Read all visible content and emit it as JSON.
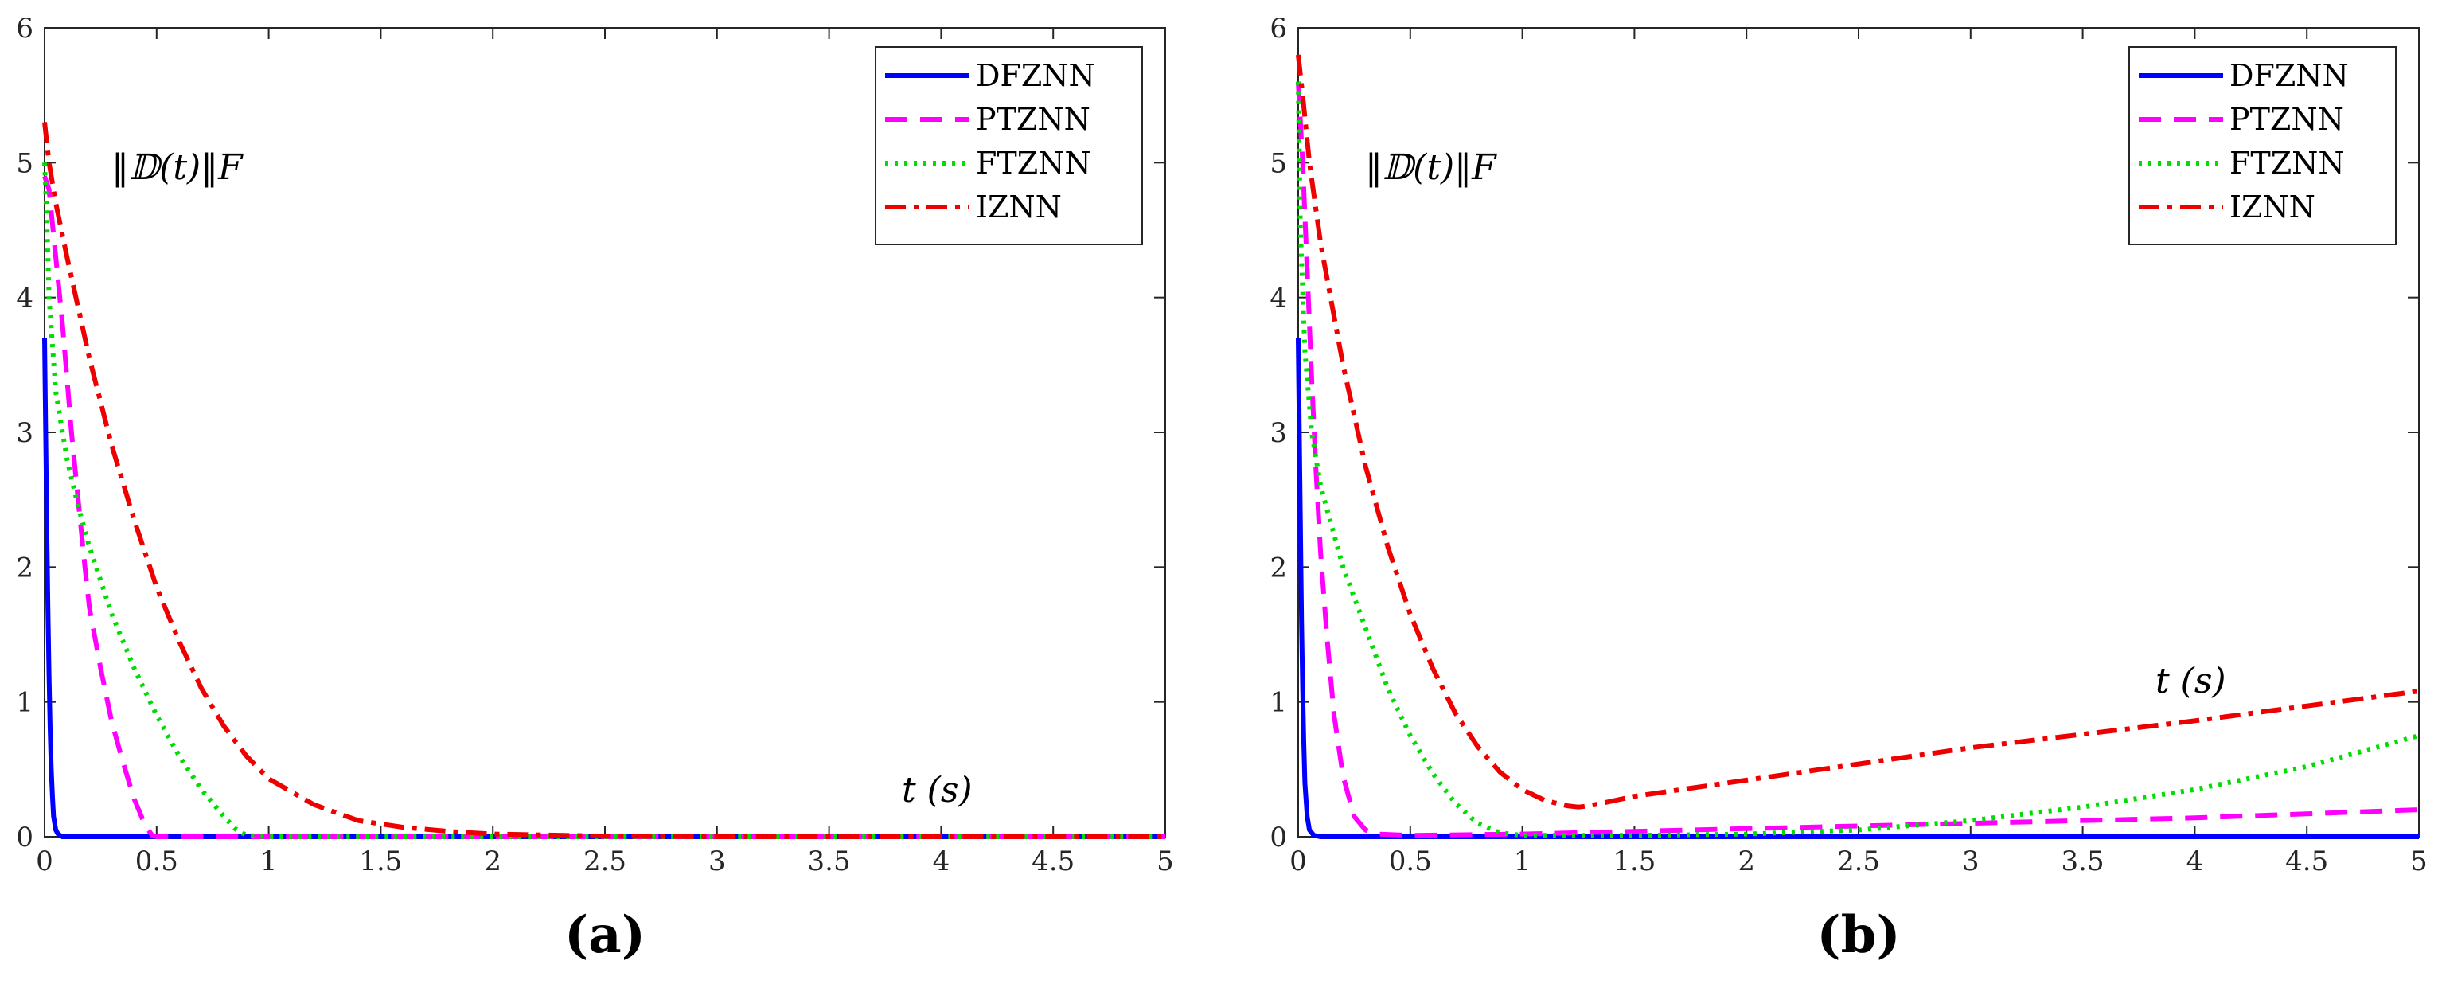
{
  "figure": {
    "panel_captions": [
      "(a)",
      "(b)"
    ]
  },
  "chart_data": [
    {
      "type": "line",
      "panel": "(a)",
      "xlim": [
        0,
        5
      ],
      "ylim": [
        0,
        6
      ],
      "xticks": [
        "0",
        "0.5",
        "1",
        "1.5",
        "2",
        "2.5",
        "3",
        "3.5",
        "4",
        "4.5",
        "5"
      ],
      "yticks": [
        "0",
        "1",
        "2",
        "3",
        "4",
        "5",
        "6"
      ],
      "y_annotation": "‖𝔻(t)‖F",
      "x_annotation": "t (s)",
      "legend_position": "top-right",
      "series": [
        {
          "name": "DFZNN",
          "color": "#0000ff",
          "style": "solid",
          "x": [
            0,
            0.005,
            0.01,
            0.015,
            0.02,
            0.025,
            0.03,
            0.035,
            0.04,
            0.05,
            0.06,
            0.07,
            0.08,
            0.1,
            5
          ],
          "y": [
            3.7,
            3.0,
            2.3,
            1.7,
            1.2,
            0.8,
            0.5,
            0.3,
            0.15,
            0.05,
            0.02,
            0.01,
            0.0,
            0.0,
            0.0
          ]
        },
        {
          "name": "PTZNN",
          "color": "#ff00ff",
          "style": "dashed",
          "x": [
            0,
            0.02,
            0.05,
            0.08,
            0.1,
            0.12,
            0.15,
            0.18,
            0.2,
            0.25,
            0.3,
            0.35,
            0.4,
            0.45,
            0.48,
            0.5,
            5
          ],
          "y": [
            4.9,
            4.8,
            4.3,
            3.8,
            3.4,
            3.0,
            2.5,
            2.0,
            1.7,
            1.25,
            0.85,
            0.55,
            0.28,
            0.08,
            0.01,
            0.0,
            0.0
          ]
        },
        {
          "name": "FTZNN",
          "color": "#00dd00",
          "style": "dotted",
          "x": [
            0,
            0.01,
            0.02,
            0.05,
            0.1,
            0.15,
            0.2,
            0.3,
            0.4,
            0.5,
            0.6,
            0.7,
            0.8,
            0.85,
            0.9,
            1.0,
            5
          ],
          "y": [
            5.0,
            4.6,
            4.0,
            3.3,
            2.8,
            2.45,
            2.15,
            1.65,
            1.25,
            0.9,
            0.6,
            0.35,
            0.15,
            0.06,
            0.01,
            0.0,
            0.0
          ]
        },
        {
          "name": "IZNN",
          "color": "#ee0000",
          "style": "dashdot",
          "x": [
            0,
            0.02,
            0.05,
            0.1,
            0.2,
            0.3,
            0.4,
            0.5,
            0.6,
            0.7,
            0.8,
            0.9,
            1.0,
            1.2,
            1.4,
            1.6,
            1.8,
            2.0,
            2.5,
            3.0,
            5.0
          ],
          "y": [
            5.3,
            5.0,
            4.7,
            4.3,
            3.55,
            2.9,
            2.35,
            1.85,
            1.45,
            1.1,
            0.82,
            0.6,
            0.43,
            0.24,
            0.12,
            0.07,
            0.04,
            0.02,
            0.005,
            0.0,
            0.0
          ]
        }
      ]
    },
    {
      "type": "line",
      "panel": "(b)",
      "xlim": [
        0,
        5
      ],
      "ylim": [
        0,
        6
      ],
      "xticks": [
        "0",
        "0.5",
        "1",
        "1.5",
        "2",
        "2.5",
        "3",
        "3.5",
        "4",
        "4.5",
        "5"
      ],
      "yticks": [
        "0",
        "1",
        "2",
        "3",
        "4",
        "5",
        "6"
      ],
      "y_annotation": "‖𝔻(t)‖F",
      "x_annotation": "t (s)",
      "legend_position": "top-right",
      "series": [
        {
          "name": "DFZNN",
          "color": "#0000ff",
          "style": "solid",
          "x": [
            0,
            0.005,
            0.01,
            0.015,
            0.02,
            0.025,
            0.03,
            0.04,
            0.05,
            0.07,
            0.1,
            5
          ],
          "y": [
            3.7,
            3.0,
            2.3,
            1.6,
            1.1,
            0.7,
            0.4,
            0.15,
            0.05,
            0.01,
            0.0,
            0.0
          ]
        },
        {
          "name": "PTZNN",
          "color": "#ff00ff",
          "style": "dashed",
          "x": [
            0,
            0.02,
            0.04,
            0.06,
            0.08,
            0.1,
            0.13,
            0.16,
            0.2,
            0.25,
            0.3,
            0.35,
            0.5,
            1.0,
            2.0,
            3.0,
            4.0,
            5.0
          ],
          "y": [
            5.6,
            5.0,
            4.2,
            3.4,
            2.7,
            2.1,
            1.45,
            0.9,
            0.45,
            0.15,
            0.05,
            0.02,
            0.01,
            0.02,
            0.06,
            0.1,
            0.14,
            0.2
          ]
        },
        {
          "name": "FTZNN",
          "color": "#00dd00",
          "style": "dotted",
          "x": [
            0,
            0.01,
            0.03,
            0.06,
            0.1,
            0.2,
            0.3,
            0.4,
            0.5,
            0.6,
            0.7,
            0.8,
            0.9,
            1.0,
            1.5,
            2.0,
            2.5,
            3.0,
            3.5,
            4.0,
            4.5,
            5.0
          ],
          "y": [
            5.6,
            4.5,
            3.6,
            3.0,
            2.6,
            2.0,
            1.55,
            1.1,
            0.75,
            0.47,
            0.25,
            0.1,
            0.03,
            0.01,
            0.01,
            0.02,
            0.05,
            0.12,
            0.22,
            0.35,
            0.52,
            0.75
          ]
        },
        {
          "name": "IZNN",
          "color": "#ee0000",
          "style": "dashdot",
          "x": [
            0,
            0.02,
            0.05,
            0.1,
            0.2,
            0.3,
            0.4,
            0.5,
            0.6,
            0.7,
            0.8,
            0.9,
            1.0,
            1.1,
            1.2,
            1.25,
            1.3,
            1.5,
            2.0,
            2.5,
            3.0,
            3.5,
            4.0,
            4.5,
            5.0
          ],
          "y": [
            5.8,
            5.5,
            5.0,
            4.4,
            3.5,
            2.75,
            2.15,
            1.65,
            1.25,
            0.92,
            0.67,
            0.48,
            0.35,
            0.27,
            0.23,
            0.22,
            0.23,
            0.3,
            0.42,
            0.54,
            0.66,
            0.76,
            0.86,
            0.97,
            1.08
          ]
        }
      ]
    }
  ]
}
